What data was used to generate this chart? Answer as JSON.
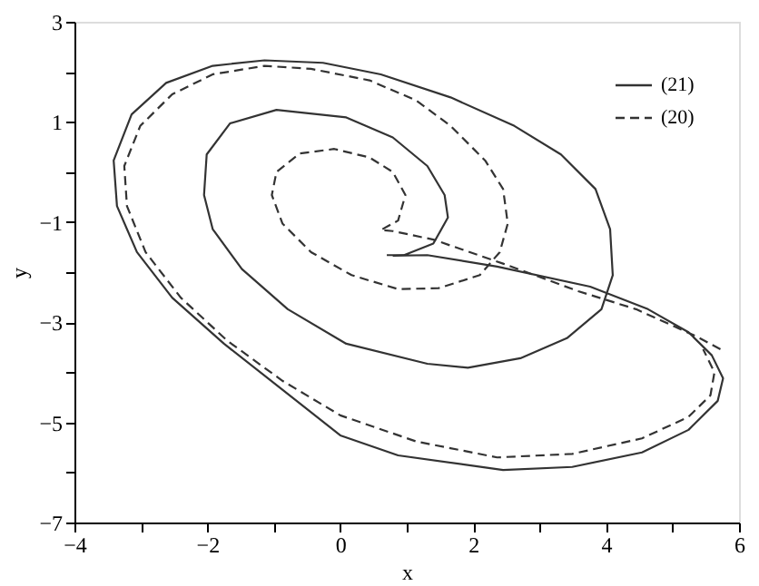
{
  "chart_data": {
    "type": "line",
    "xlabel": "x",
    "ylabel": "y",
    "xlim": [
      -4,
      6
    ],
    "ylim": [
      -7,
      3
    ],
    "xticks": [
      {
        "value": -4,
        "label": "−4"
      },
      {
        "value": -3,
        "label": null
      },
      {
        "value": -2,
        "label": "−2"
      },
      {
        "value": -1,
        "label": null
      },
      0,
      {
        "value": 1,
        "label": null
      },
      2,
      {
        "value": 3,
        "label": null
      },
      4,
      {
        "value": 5,
        "label": null
      },
      6
    ],
    "yticks": [
      {
        "value": -7,
        "label": "−7"
      },
      {
        "value": -6,
        "label": null
      },
      {
        "value": -5,
        "label": "−5"
      },
      {
        "value": -4,
        "label": null
      },
      {
        "value": -3,
        "label": "−3"
      },
      {
        "value": -2,
        "label": null
      },
      {
        "value": -1,
        "label": "−1"
      },
      {
        "value": 0,
        "label": null
      },
      1,
      {
        "value": 2,
        "label": null
      },
      3
    ],
    "grid": false,
    "legend": "top right",
    "marker": "none",
    "series": [
      {
        "name": "(21)",
        "color": "#333333",
        "line_style": "solid",
        "x": [
          0.7,
          0.96,
          1.4,
          1.62,
          1.57,
          1.31,
          0.79,
          0.09,
          -0.96,
          -1.66,
          -2.01,
          -2.05,
          -1.92,
          -1.48,
          -0.79,
          0.09,
          1.31,
          1.92,
          2.71,
          3.41,
          3.93,
          4.1,
          4.06,
          3.84,
          3.32,
          2.62,
          1.66,
          0.61,
          -0.26,
          -1.14,
          -1.92,
          -2.62,
          -3.14,
          -3.41,
          -3.36,
          -3.06,
          -2.53,
          -1.75,
          -0.87,
          0.0,
          0.87,
          2.45,
          3.49,
          4.54,
          5.24,
          5.68,
          5.76,
          5.59,
          5.24,
          4.63,
          3.76,
          2.36,
          1.31,
          0.79
        ],
        "values": [
          -1.66,
          -1.66,
          -1.43,
          -0.91,
          -0.46,
          0.12,
          0.69,
          1.09,
          1.24,
          0.97,
          0.35,
          -0.46,
          -1.14,
          -1.94,
          -2.74,
          -3.43,
          -3.83,
          -3.91,
          -3.72,
          -3.32,
          -2.74,
          -2.06,
          -1.14,
          -0.34,
          0.35,
          0.92,
          1.49,
          1.95,
          2.18,
          2.23,
          2.12,
          1.78,
          1.15,
          0.23,
          -0.68,
          -1.6,
          -2.51,
          -3.43,
          -4.35,
          -5.26,
          -5.66,
          -5.95,
          -5.89,
          -5.6,
          -5.15,
          -4.57,
          -4.12,
          -3.66,
          -3.2,
          -2.74,
          -2.29,
          -1.89,
          -1.66,
          -1.67
        ]
      },
      {
        "name": "(20)",
        "color": "#333333",
        "line_style": "dashed",
        "x": [
          5.72,
          5.37,
          4.45,
          3.58,
          2.45,
          1.4,
          0.79,
          0.61,
          0.87,
          0.98,
          0.79,
          0.44,
          -0.09,
          -0.61,
          -0.96,
          -1.03,
          -0.87,
          -0.44,
          0.17,
          0.87,
          1.48,
          2.1,
          2.4,
          2.52,
          2.45,
          2.18,
          1.66,
          1.14,
          0.44,
          -0.44,
          -1.14,
          -1.92,
          -2.53,
          -3.01,
          -3.25,
          -3.21,
          -2.93,
          -2.4,
          -1.7,
          -0.87,
          0.0,
          1.14,
          2.36,
          3.49,
          4.54,
          5.24,
          5.57,
          5.63,
          5.46
        ],
        "values": [
          -3.54,
          -3.29,
          -2.74,
          -2.38,
          -1.83,
          -1.35,
          -1.18,
          -1.16,
          -0.97,
          -0.46,
          0.0,
          0.29,
          0.46,
          0.37,
          0.0,
          -0.46,
          -1.03,
          -1.6,
          -2.06,
          -2.34,
          -2.32,
          -2.06,
          -1.6,
          -1.03,
          -0.34,
          0.23,
          0.92,
          1.43,
          1.83,
          2.06,
          2.12,
          1.95,
          1.55,
          0.92,
          0.12,
          -0.68,
          -1.6,
          -2.51,
          -3.37,
          -4.17,
          -4.86,
          -5.38,
          -5.7,
          -5.63,
          -5.32,
          -4.89,
          -4.46,
          -4.0,
          -3.54
        ]
      }
    ]
  }
}
